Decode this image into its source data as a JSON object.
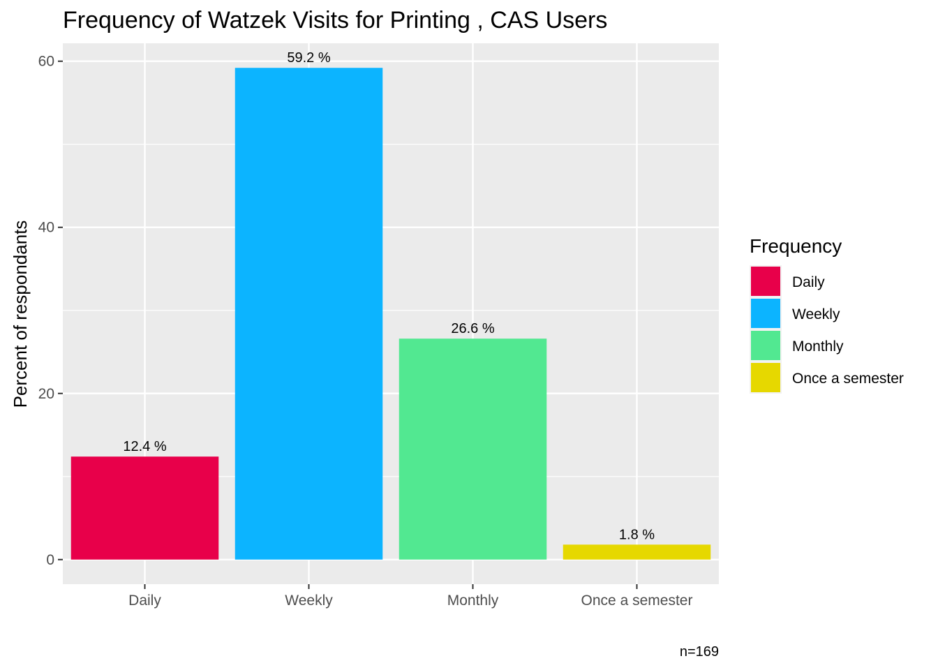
{
  "chart_data": {
    "type": "bar",
    "title": "Frequency of Watzek Visits for Printing , CAS Users",
    "xlabel": "",
    "ylabel": "Percent of respondants",
    "categories": [
      "Daily",
      "Weekly",
      "Monthly",
      "Once a semester"
    ],
    "values": [
      12.4,
      59.2,
      26.6,
      1.8
    ],
    "bar_labels": [
      "12.4 %",
      "59.2 %",
      "26.6 %",
      "1.8 %"
    ],
    "colors": [
      "#E8004A",
      "#0CB4FF",
      "#52E891",
      "#E6D800"
    ],
    "ylim": [
      -2.96,
      62.16
    ],
    "yticks": [
      0,
      20,
      40,
      60
    ],
    "grid": true,
    "legend": {
      "title": "Frequency",
      "placement": "right",
      "entries": [
        "Daily",
        "Weekly",
        "Monthly",
        "Once a semester"
      ]
    },
    "caption": "n=169"
  }
}
